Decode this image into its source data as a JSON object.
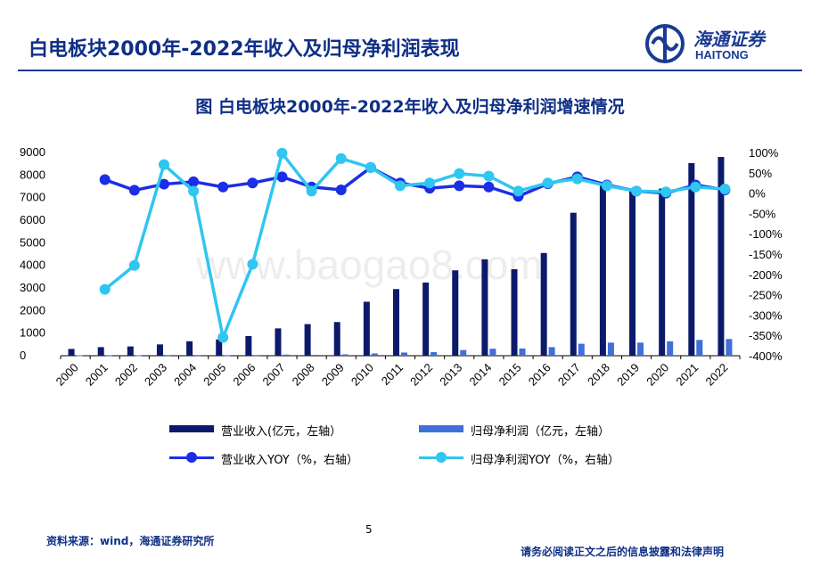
{
  "header": {
    "title": "白电板块2000年-2022年收入及归母净利润表现",
    "logo_cn": "海通证券",
    "logo_en": "HAITONG",
    "logo_icon": "haitong-logo-icon"
  },
  "watermark": "www.baogao8.com",
  "footer": {
    "page_number": "5",
    "source": "资料来源：wind，海通证券研究所",
    "disclaimer": "请务必阅读正文之后的信息披露和法律声明"
  },
  "colors": {
    "revenue_bar": "#0c1a6b",
    "profit_bar": "#3f6fd8",
    "revenue_line": "#1b2ee6",
    "profit_line": "#2fc6f0",
    "brand": "#0f2f86"
  },
  "chart_data": {
    "type": "bar",
    "title": "图  白电板块2000年-2022年收入及归母净利润增速情况",
    "categories": [
      "2000",
      "2001",
      "2002",
      "2003",
      "2004",
      "2005",
      "2006",
      "2007",
      "2008",
      "2009",
      "2010",
      "2011",
      "2012",
      "2013",
      "2014",
      "2015",
      "2016",
      "2017",
      "2018",
      "2019",
      "2020",
      "2021",
      "2022"
    ],
    "y_left": {
      "min": 0,
      "max": 9000,
      "ticks": [
        "0",
        "1000",
        "2000",
        "3000",
        "4000",
        "5000",
        "6000",
        "7000",
        "8000",
        "9000"
      ]
    },
    "y_right": {
      "min": -400,
      "max": 100,
      "ticks": [
        "100%",
        "50%",
        "0%",
        "-50%",
        "-100%",
        "-150%",
        "-200%",
        "-250%",
        "-300%",
        "-350%",
        "-400%"
      ]
    },
    "series": [
      {
        "name": "营业收入(亿元，左轴）",
        "type": "bar",
        "axis": "left",
        "values": [
          300,
          380,
          410,
          500,
          640,
          720,
          870,
          1210,
          1400,
          1490,
          2390,
          2950,
          3240,
          3780,
          4270,
          3830,
          4550,
          6330,
          7580,
          7370,
          7400,
          8530,
          8800
        ]
      },
      {
        "name": "归母净利润（亿元，左轴）",
        "type": "bar",
        "axis": "left",
        "values": [
          20,
          15,
          20,
          30,
          30,
          15,
          30,
          50,
          40,
          60,
          100,
          140,
          160,
          250,
          310,
          320,
          380,
          530,
          580,
          580,
          640,
          700,
          740
        ]
      },
      {
        "name": "营业收入YOY（%，右轴）",
        "type": "line",
        "axis": "right",
        "values": [
          null,
          33,
          7,
          22,
          28,
          15,
          25,
          40,
          15,
          8,
          63,
          25,
          12,
          18,
          15,
          -8,
          23,
          40,
          20,
          5,
          0,
          20,
          8
        ]
      },
      {
        "name": "归母净利润YOY（%，右轴）",
        "type": "line",
        "axis": "right",
        "values": [
          null,
          -237,
          -178,
          70,
          5,
          -355,
          -175,
          98,
          5,
          85,
          63,
          18,
          25,
          48,
          42,
          5,
          25,
          35,
          18,
          5,
          3,
          15,
          10
        ]
      }
    ],
    "grid": false,
    "legend_position": "bottom"
  }
}
